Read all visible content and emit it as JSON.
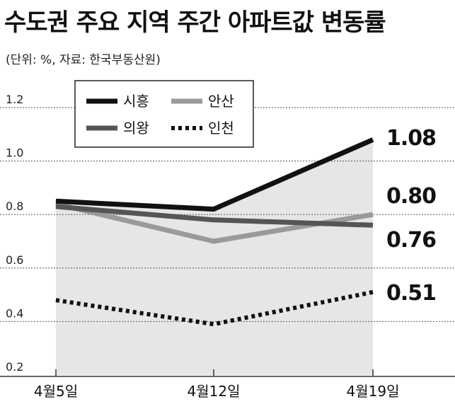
{
  "chart_data": {
    "type": "line",
    "title": "수도권 주요 지역 주간 아파트값 변동률",
    "subtitle": "(단위: %, 자료: 한국부동산원)",
    "categories": [
      "4월5일",
      "4월12일",
      "4월19일"
    ],
    "ylim": [
      0.2,
      1.2
    ],
    "yticks": [
      "1.2",
      "1.0",
      "0.8",
      "0.6",
      "0.4",
      "0.2"
    ],
    "grid": true,
    "legend_position": "top-left",
    "series": [
      {
        "name": "시흥",
        "values": [
          0.85,
          0.82,
          1.08
        ],
        "color": "#111111",
        "dash": false,
        "end_label": "1.08"
      },
      {
        "name": "의왕",
        "values": [
          0.83,
          0.78,
          0.76
        ],
        "color": "#555555",
        "dash": false,
        "end_label": "0.76"
      },
      {
        "name": "안산",
        "values": [
          0.84,
          0.7,
          0.8
        ],
        "color": "#9a9a9a",
        "dash": false,
        "end_label": "0.80"
      },
      {
        "name": "인천",
        "values": [
          0.48,
          0.39,
          0.51
        ],
        "color": "#111111",
        "dash": true,
        "end_label": "0.51"
      }
    ]
  }
}
